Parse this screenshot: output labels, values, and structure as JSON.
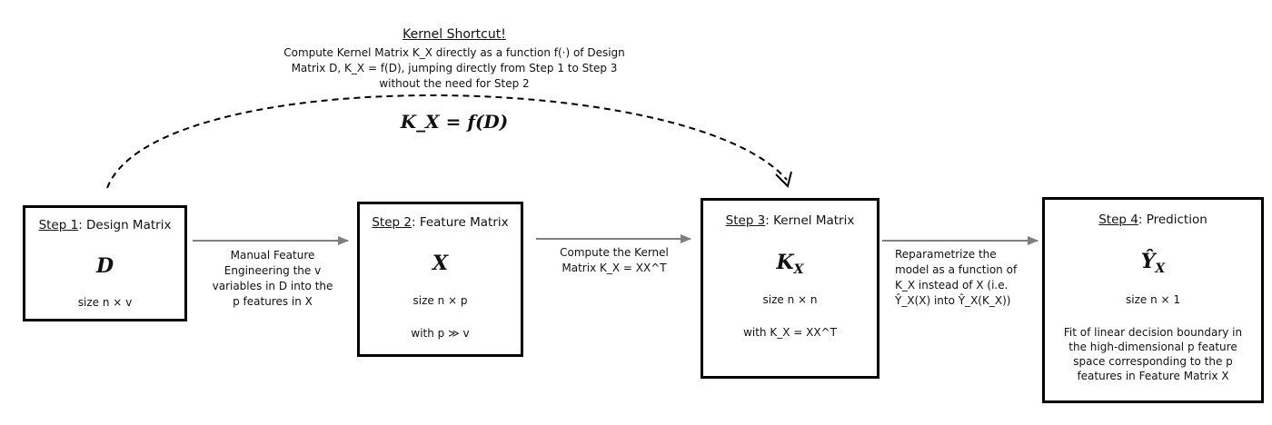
{
  "shortcut": {
    "title": "Kernel Shortcut!",
    "description": "Compute Kernel Matrix K_X directly as a function f(·) of Design Matrix D, K_X = f(D), jumping directly from Step 1 to Step 3 without the need for Step 2",
    "formula": "K_X = f(D)"
  },
  "steps": [
    {
      "step_label": "Step 1",
      "title": ": Design Matrix",
      "symbol": "D",
      "lines": [
        "size n × v"
      ]
    },
    {
      "step_label": "Step 2",
      "title": ": Feature Matrix",
      "symbol": "X",
      "lines": [
        "size n × p",
        "with p ≫ v"
      ]
    },
    {
      "step_label": "Step 3",
      "title": ": Kernel Matrix",
      "symbol": "K_X",
      "lines": [
        "size n × n",
        "with K_X = XX^T"
      ]
    },
    {
      "step_label": "Step 4",
      "title": ": Prediction",
      "symbol": "Ŷ_X",
      "lines": [
        "size n × 1",
        "Fit of linear decision boundary in the high-dimensional p feature space corresponding to the p features in Feature Matrix X"
      ]
    }
  ],
  "transitions": [
    "Manual Feature Engineering the v variables in D into the p features in X",
    "Compute the Kernel Matrix K_X = XX^T",
    "Reparametrize the model as a function of K_X instead of X (i.e. Ŷ_X(X) into Ŷ_X(K_X))"
  ]
}
